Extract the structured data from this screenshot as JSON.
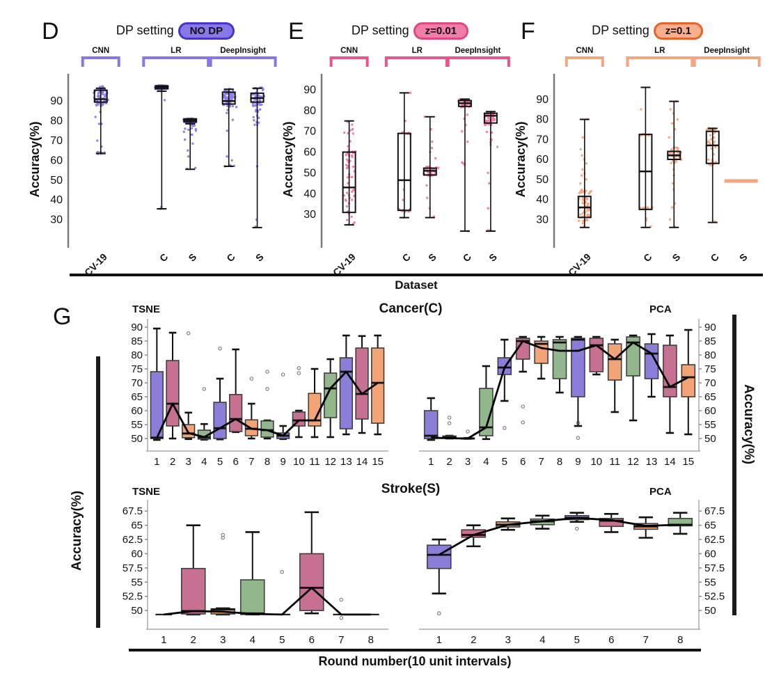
{
  "figure": {
    "dataset_axis_label": "Dataset",
    "round_axis_label": "Round number(10 unit intervals)",
    "left_axis_label": "Accuracy(%)",
    "right_axis_label": "Accuracy(%)",
    "panel_g_letter": "G",
    "cancer_title": "Cancer(C)",
    "stroke_title": "Stroke(S)"
  },
  "palette": {
    "purple": "#8b7ed9",
    "pink": "#c77092",
    "orange": "#f2a477",
    "green": "#93b78c",
    "box_stroke": "#3f3f3f",
    "mean_line": "#000000",
    "axis_gray": "#aaaaaa"
  },
  "chart_data": [
    {
      "id": "D",
      "type": "box-scatter",
      "letter": "D",
      "title": "DP setting",
      "badge": {
        "label": "NO DP",
        "fill": "#8678e8",
        "border": "#4734cc"
      },
      "accent": "#8678e8",
      "point_color": "#8b7eec",
      "ylabel": "Accuracy(%)",
      "yticks": [
        90,
        80,
        70,
        60,
        50,
        40,
        30
      ],
      "ylim": [
        20,
        101
      ],
      "categories": [
        "CV-19",
        "C",
        "S",
        "C",
        "S"
      ],
      "cols": [
        0.16,
        0.46,
        0.6,
        0.79,
        0.93
      ],
      "groups": [
        {
          "label": "CNN",
          "cats": [
            0,
            0
          ]
        },
        {
          "label": "LR",
          "cats": [
            1,
            2
          ]
        },
        {
          "label": "DeepInsight",
          "cats": [
            3,
            4
          ]
        }
      ],
      "boxes": [
        {
          "lo": 63.5,
          "q1": 89.5,
          "med": 91,
          "q3": 95.5,
          "hi": 96.5,
          "scatter": [
            {
              "lo": 87.5,
              "hi": 97.5,
              "n": 72
            },
            {
              "lo": 63.3,
              "hi": 64.2,
              "n": 7
            }
          ],
          "singles": [
            78.5,
            78.5,
            82,
            70,
            67,
            84.5
          ]
        },
        {
          "lo": 35.5,
          "q1": 96.2,
          "med": 97,
          "q3": 97.7,
          "hi": 97.7,
          "cap2": 95,
          "scatter": [
            {
              "lo": 96,
              "hi": 98,
              "n": 58
            }
          ],
          "singles": [
            90.5,
            35.5,
            36.5
          ]
        },
        {
          "lo": 55.5,
          "q1": 79.4,
          "med": 80.2,
          "q3": 81,
          "hi": 81,
          "cap2": 78.5,
          "scatter": [
            {
              "lo": 78.8,
              "hi": 81.3,
              "n": 46
            },
            {
              "lo": 73,
              "hi": 78,
              "n": 9
            }
          ],
          "singles": [
            55.8,
            56.2,
            65,
            62,
            68.5,
            70.5,
            75.5,
            76.2
          ]
        },
        {
          "lo": 57,
          "q1": 88.5,
          "med": 90,
          "q3": 94.5,
          "hi": 96,
          "scatter": [
            {
              "lo": 87,
              "hi": 96.5,
              "n": 58
            },
            {
              "lo": 57,
              "hi": 57.6,
              "n": 4
            }
          ],
          "singles": [
            75,
            80.5,
            62,
            60,
            84,
            85.5
          ]
        },
        {
          "lo": 26,
          "q1": 89.5,
          "med": 91.5,
          "q3": 94,
          "hi": 96.5,
          "scatter": [
            {
              "lo": 87.5,
              "hi": 97,
              "n": 46
            },
            {
              "lo": 78,
              "hi": 86,
              "n": 13
            }
          ],
          "singles": [
            57,
            30,
            26.5
          ]
        }
      ]
    },
    {
      "id": "E",
      "type": "box-scatter",
      "letter": "E",
      "title": "DP setting",
      "badge": {
        "label": "z=0.01",
        "fill": "#f07ea8",
        "border": "#e0487f"
      },
      "accent": "#e8558c",
      "point_color": "#ee7fa5",
      "ylabel": "Accuracy(%)",
      "yticks": [
        90,
        80,
        70,
        60,
        50,
        40,
        30
      ],
      "ylim": [
        18,
        95
      ],
      "categories": [
        "CV-19",
        "C",
        "S",
        "C",
        "S"
      ],
      "cols": [
        0.15,
        0.45,
        0.59,
        0.78,
        0.92
      ],
      "groups": [
        {
          "label": "CNN",
          "cats": [
            0,
            0
          ]
        },
        {
          "label": "LR",
          "cats": [
            1,
            2
          ]
        },
        {
          "label": "DeepInsight",
          "cats": [
            3,
            4
          ]
        }
      ],
      "boxes": [
        {
          "lo": 25,
          "q1": 31,
          "med": 43,
          "q3": 60,
          "hi": 75,
          "scatter": [
            {
              "lo": 25,
              "hi": 75,
              "n": 58
            }
          ],
          "singles": []
        },
        {
          "lo": 28.5,
          "q1": 32,
          "med": 46.5,
          "q3": 69,
          "hi": 88.5,
          "scatter": [
            {
              "lo": 68.4,
              "hi": 69.6,
              "n": 9
            },
            {
              "lo": 31.4,
              "hi": 32.6,
              "n": 9
            }
          ],
          "singles": [
            88.5,
            75,
            42,
            37,
            28.5
          ]
        },
        {
          "lo": 28.5,
          "q1": 49,
          "med": 51,
          "q3": 52.3,
          "hi": 77,
          "scatter": [
            {
              "lo": 48.5,
              "hi": 53.5,
              "n": 40
            }
          ],
          "singles": [
            77,
            71,
            65,
            62,
            60,
            57,
            44,
            38,
            33,
            29
          ]
        },
        {
          "lo": 22,
          "q1": 82,
          "med": 83.5,
          "q3": 84.8,
          "hi": 85.5,
          "scatter": [
            {
              "lo": 81.5,
              "hi": 85.5,
              "n": 40
            }
          ],
          "singles": [
            78,
            76,
            73,
            70,
            65,
            55,
            54.5,
            54,
            22
          ]
        },
        {
          "lo": 22,
          "q1": 74,
          "med": 77.5,
          "q3": 78.7,
          "hi": 79.5,
          "scatter": [
            {
              "lo": 73,
              "hi": 79.5,
              "n": 44
            },
            {
              "lo": 62,
              "hi": 70,
              "n": 7
            }
          ],
          "singles": [
            50,
            45,
            33,
            22.5,
            22.5
          ]
        }
      ]
    },
    {
      "id": "F",
      "type": "box-scatter",
      "letter": "F",
      "title": "DP setting",
      "badge": {
        "label": "z=0.1",
        "fill": "#f8b08c",
        "border": "#e8622b"
      },
      "accent": "#f4a582",
      "point_color": "#f6a57f",
      "ylabel": "Accuracy(%)",
      "yticks": [
        90,
        80,
        70,
        60,
        50,
        40,
        30
      ],
      "ylim": [
        20,
        100
      ],
      "categories": [
        "CV-19",
        "C",
        "S",
        "C",
        "S"
      ],
      "cols": [
        0.15,
        0.45,
        0.59,
        0.78,
        0.92
      ],
      "groups": [
        {
          "label": "CNN",
          "cats": [
            0,
            0
          ]
        },
        {
          "label": "LR",
          "cats": [
            1,
            2
          ]
        },
        {
          "label": "DeepInsight",
          "cats": [
            3,
            4
          ]
        }
      ],
      "boxes": [
        {
          "lo": 26,
          "q1": 31,
          "med": 36,
          "q3": 41.5,
          "hi": 80,
          "scatter": [
            {
              "lo": 28,
              "hi": 45,
              "n": 56
            }
          ],
          "singles": [
            80,
            71,
            65,
            62,
            60,
            58,
            55,
            53,
            52,
            50,
            48,
            26.5
          ]
        },
        {
          "lo": 26,
          "q1": 35,
          "med": 54,
          "q3": 72.5,
          "hi": 96,
          "scatter": [
            {
              "lo": 71.9,
              "hi": 73.1,
              "n": 11
            },
            {
              "lo": 34.9,
              "hi": 36.1,
              "n": 11
            }
          ],
          "singles": [
            85,
            30.5,
            29.5,
            26.5
          ]
        },
        {
          "lo": 26,
          "q1": 60,
          "med": 62,
          "q3": 64,
          "hi": 89,
          "scatter": [
            {
              "lo": 58,
              "hi": 66,
              "n": 36
            }
          ],
          "singles": [
            89,
            85,
            83,
            80,
            78,
            75,
            71,
            55,
            52,
            48,
            45,
            38,
            36,
            30,
            26.5
          ]
        },
        {
          "lo": 28.5,
          "q1": 58,
          "med": 67,
          "q3": 74,
          "hi": 75.5,
          "scatter": [
            {
              "lo": 74.4,
              "hi": 75.6,
              "n": 12
            },
            {
              "lo": 58,
              "hi": 74,
              "n": 20
            },
            {
              "lo": 57,
              "hi": 57.8,
              "n": 5
            }
          ],
          "singles": [
            29
          ]
        },
        {
          "flat": true,
          "med": 49.2
        }
      ]
    },
    {
      "id": "G-tsne-cancer",
      "type": "round-box",
      "title": "TSNE",
      "side": "left",
      "yticks": [
        90,
        85,
        80,
        75,
        70,
        65,
        60,
        55,
        50
      ],
      "ylim": [
        46.5,
        92
      ],
      "xticks": [
        1,
        2,
        3,
        4,
        5,
        6,
        7,
        8,
        9,
        10,
        11,
        12,
        13,
        14,
        15
      ],
      "boxes": [
        {
          "lo": 49.5,
          "q1": 50,
          "med": 50.3,
          "q3": 74,
          "hi": 89.5
        },
        {
          "lo": 50,
          "q1": 54.5,
          "med": 62.5,
          "q3": 78,
          "hi": 88
        },
        {
          "lo": 49.8,
          "q1": 50.3,
          "med": 51.8,
          "q3": 55,
          "hi": 59.3,
          "out": [
            87.8
          ]
        },
        {
          "lo": 49.6,
          "q1": 49.8,
          "med": 50.4,
          "q3": 53,
          "hi": 55.2,
          "out": [
            67.8
          ]
        },
        {
          "lo": 49.7,
          "q1": 50,
          "med": 53.7,
          "q3": 63,
          "hi": 71.5,
          "out": [
            82.3
          ]
        },
        {
          "lo": 52.3,
          "q1": 52.5,
          "med": 57,
          "q3": 65.8,
          "hi": 82
        },
        {
          "lo": 50,
          "q1": 51,
          "med": 53.5,
          "q3": 56.7,
          "hi": 62.5,
          "out": [
            71.5
          ]
        },
        {
          "lo": 50,
          "q1": 50.5,
          "med": 53,
          "q3": 56.3,
          "hi": 56.5,
          "out": [
            67.8,
            74
          ]
        },
        {
          "lo": 49.8,
          "q1": 50,
          "med": 51,
          "q3": 52,
          "hi": 54.5,
          "out": [
            73
          ]
        },
        {
          "lo": 50.5,
          "q1": 54.5,
          "med": 56.5,
          "q3": 59.5,
          "hi": 60,
          "out": [
            73.5,
            75.3
          ]
        },
        {
          "lo": 50.5,
          "q1": 54.5,
          "med": 56.5,
          "q3": 66.2,
          "hi": 75
        },
        {
          "lo": 50.5,
          "q1": 57.5,
          "med": 68,
          "q3": 73.5,
          "hi": 78.5
        },
        {
          "lo": 51.5,
          "q1": 53.5,
          "med": 74,
          "q3": 79,
          "hi": 87
        },
        {
          "lo": 52,
          "q1": 57,
          "med": 66,
          "q3": 82.5,
          "hi": 86.8
        },
        {
          "lo": 51.5,
          "q1": 55.5,
          "med": 70,
          "q3": 82.5,
          "hi": 87
        }
      ],
      "mean_line": [
        50.2,
        62.5,
        52,
        50.5,
        53.7,
        57,
        53.5,
        53,
        51,
        56.5,
        56.5,
        68,
        74,
        66,
        70
      ]
    },
    {
      "id": "G-pca-cancer",
      "type": "round-box",
      "title": "PCA",
      "side": "right",
      "yticks": [
        90,
        85,
        80,
        75,
        70,
        65,
        60,
        55,
        50
      ],
      "ylim": [
        46.5,
        92
      ],
      "xticks": [
        1,
        2,
        3,
        4,
        5,
        6,
        7,
        8,
        9,
        10,
        11,
        12,
        13,
        14,
        15
      ],
      "boxes": [
        {
          "lo": 49.5,
          "q1": 50,
          "med": 51,
          "q3": 60,
          "hi": 64.5
        },
        {
          "lo": 50,
          "q1": 50.1,
          "med": 50.4,
          "q3": 50.9,
          "hi": 51,
          "out": [
            55.5,
            57.5
          ]
        },
        {
          "lo": 49.9,
          "q1": 49.9,
          "med": 50,
          "q3": 50.2,
          "hi": 50.2,
          "out": [
            52.5
          ]
        },
        {
          "lo": 49.8,
          "q1": 51,
          "med": 54,
          "q3": 68,
          "hi": 76
        },
        {
          "lo": 63.5,
          "q1": 73,
          "med": 75.5,
          "q3": 79,
          "hi": 85.5,
          "out": [
            53.8
          ]
        },
        {
          "lo": 74,
          "q1": 78.5,
          "med": 85,
          "q3": 86,
          "hi": 86.5,
          "out": [
            61.5,
            55.8
          ]
        },
        {
          "lo": 71.5,
          "q1": 77,
          "med": 84,
          "q3": 85,
          "hi": 86.5
        },
        {
          "lo": 66.5,
          "q1": 71.5,
          "med": 84.5,
          "q3": 85.5,
          "hi": 86.5
        },
        {
          "lo": 54.5,
          "q1": 65,
          "med": 85.5,
          "q3": 86,
          "hi": 86.5,
          "out": [
            55.6,
            50.2
          ]
        },
        {
          "lo": 73,
          "q1": 74,
          "med": 83.5,
          "q3": 86,
          "hi": 86.5
        },
        {
          "lo": 59.5,
          "q1": 71,
          "med": 78.5,
          "q3": 84,
          "hi": 85.5
        },
        {
          "lo": 56.5,
          "q1": 72.5,
          "med": 84.5,
          "q3": 86.5,
          "hi": 87
        },
        {
          "lo": 65,
          "q1": 71.5,
          "med": 80.5,
          "q3": 84,
          "hi": 87.5
        },
        {
          "lo": 52,
          "q1": 65,
          "med": 68.5,
          "q3": 83.5,
          "hi": 87
        },
        {
          "lo": 51.5,
          "q1": 65,
          "med": 72,
          "q3": 76.5,
          "hi": 89
        }
      ],
      "mean_line": [
        50.3,
        50.1,
        50,
        54,
        75.5,
        85,
        82.5,
        81.5,
        81.5,
        83.5,
        78.5,
        84.5,
        80.5,
        68.5,
        72
      ]
    },
    {
      "id": "G-tsne-stroke",
      "type": "round-box",
      "title": "TSNE",
      "side": "left",
      "yticks": [
        67.5,
        65,
        62.5,
        60,
        57.5,
        55,
        52.5,
        50
      ],
      "ylim": [
        47.2,
        69
      ],
      "xticks": [
        1,
        2,
        3,
        4,
        5,
        6,
        7,
        8
      ],
      "boxes": [
        {
          "flat": true,
          "med": 49.3
        },
        {
          "lo": 49.3,
          "q1": 49.4,
          "med": 49.9,
          "q3": 57.4,
          "hi": 65
        },
        {
          "lo": 49.3,
          "q1": 49.4,
          "med": 50.2,
          "q3": 50.3,
          "hi": 50.4,
          "out": [
            62.8,
            63.3
          ]
        },
        {
          "lo": 49.3,
          "q1": 49.3,
          "med": 49.5,
          "q3": 55.4,
          "hi": 63.8
        },
        {
          "flat": true,
          "med": 49.3,
          "out": [
            56.8
          ]
        },
        {
          "lo": 49.5,
          "q1": 50,
          "med": 54,
          "q3": 60,
          "hi": 67.3
        },
        {
          "flat": true,
          "med": 49.3,
          "out": [
            51.9,
            48.7
          ]
        },
        {
          "flat": true,
          "med": 49.3
        }
      ],
      "mean_line": [
        49.3,
        49.9,
        49.8,
        49.4,
        49.3,
        54,
        49.3,
        49.3
      ]
    },
    {
      "id": "G-pca-stroke",
      "type": "round-box",
      "title": "PCA",
      "side": "right",
      "yticks": [
        67.5,
        65,
        62.5,
        60,
        57.5,
        55,
        52.5,
        50
      ],
      "ylim": [
        47.2,
        69
      ],
      "xticks": [
        1,
        2,
        3,
        4,
        5,
        6,
        7,
        8
      ],
      "boxes": [
        {
          "lo": 53,
          "q1": 57.4,
          "med": 59.8,
          "q3": 61.5,
          "hi": 62.5,
          "out": [
            49.5
          ]
        },
        {
          "lo": 61.3,
          "q1": 62.9,
          "med": 63.3,
          "q3": 64.2,
          "hi": 65
        },
        {
          "lo": 64.2,
          "q1": 64.7,
          "med": 65.1,
          "q3": 65.6,
          "hi": 66.2
        },
        {
          "lo": 64.4,
          "q1": 65.1,
          "med": 65.7,
          "q3": 66.1,
          "hi": 66.7
        },
        {
          "lo": 65.6,
          "q1": 66,
          "med": 66.3,
          "q3": 66.7,
          "hi": 67.2,
          "out": [
            65.9,
            64.4
          ]
        },
        {
          "lo": 63.8,
          "q1": 64.8,
          "med": 65.8,
          "q3": 66.2,
          "hi": 67
        },
        {
          "lo": 62.8,
          "q1": 64.3,
          "med": 64.8,
          "q3": 65.3,
          "hi": 66.4
        },
        {
          "lo": 63.5,
          "q1": 64.9,
          "med": 65.1,
          "q3": 66.2,
          "hi": 67.2
        }
      ],
      "mean_line": [
        59.8,
        63.3,
        65.1,
        65.7,
        66.3,
        65.9,
        64.9,
        65.1
      ]
    }
  ]
}
